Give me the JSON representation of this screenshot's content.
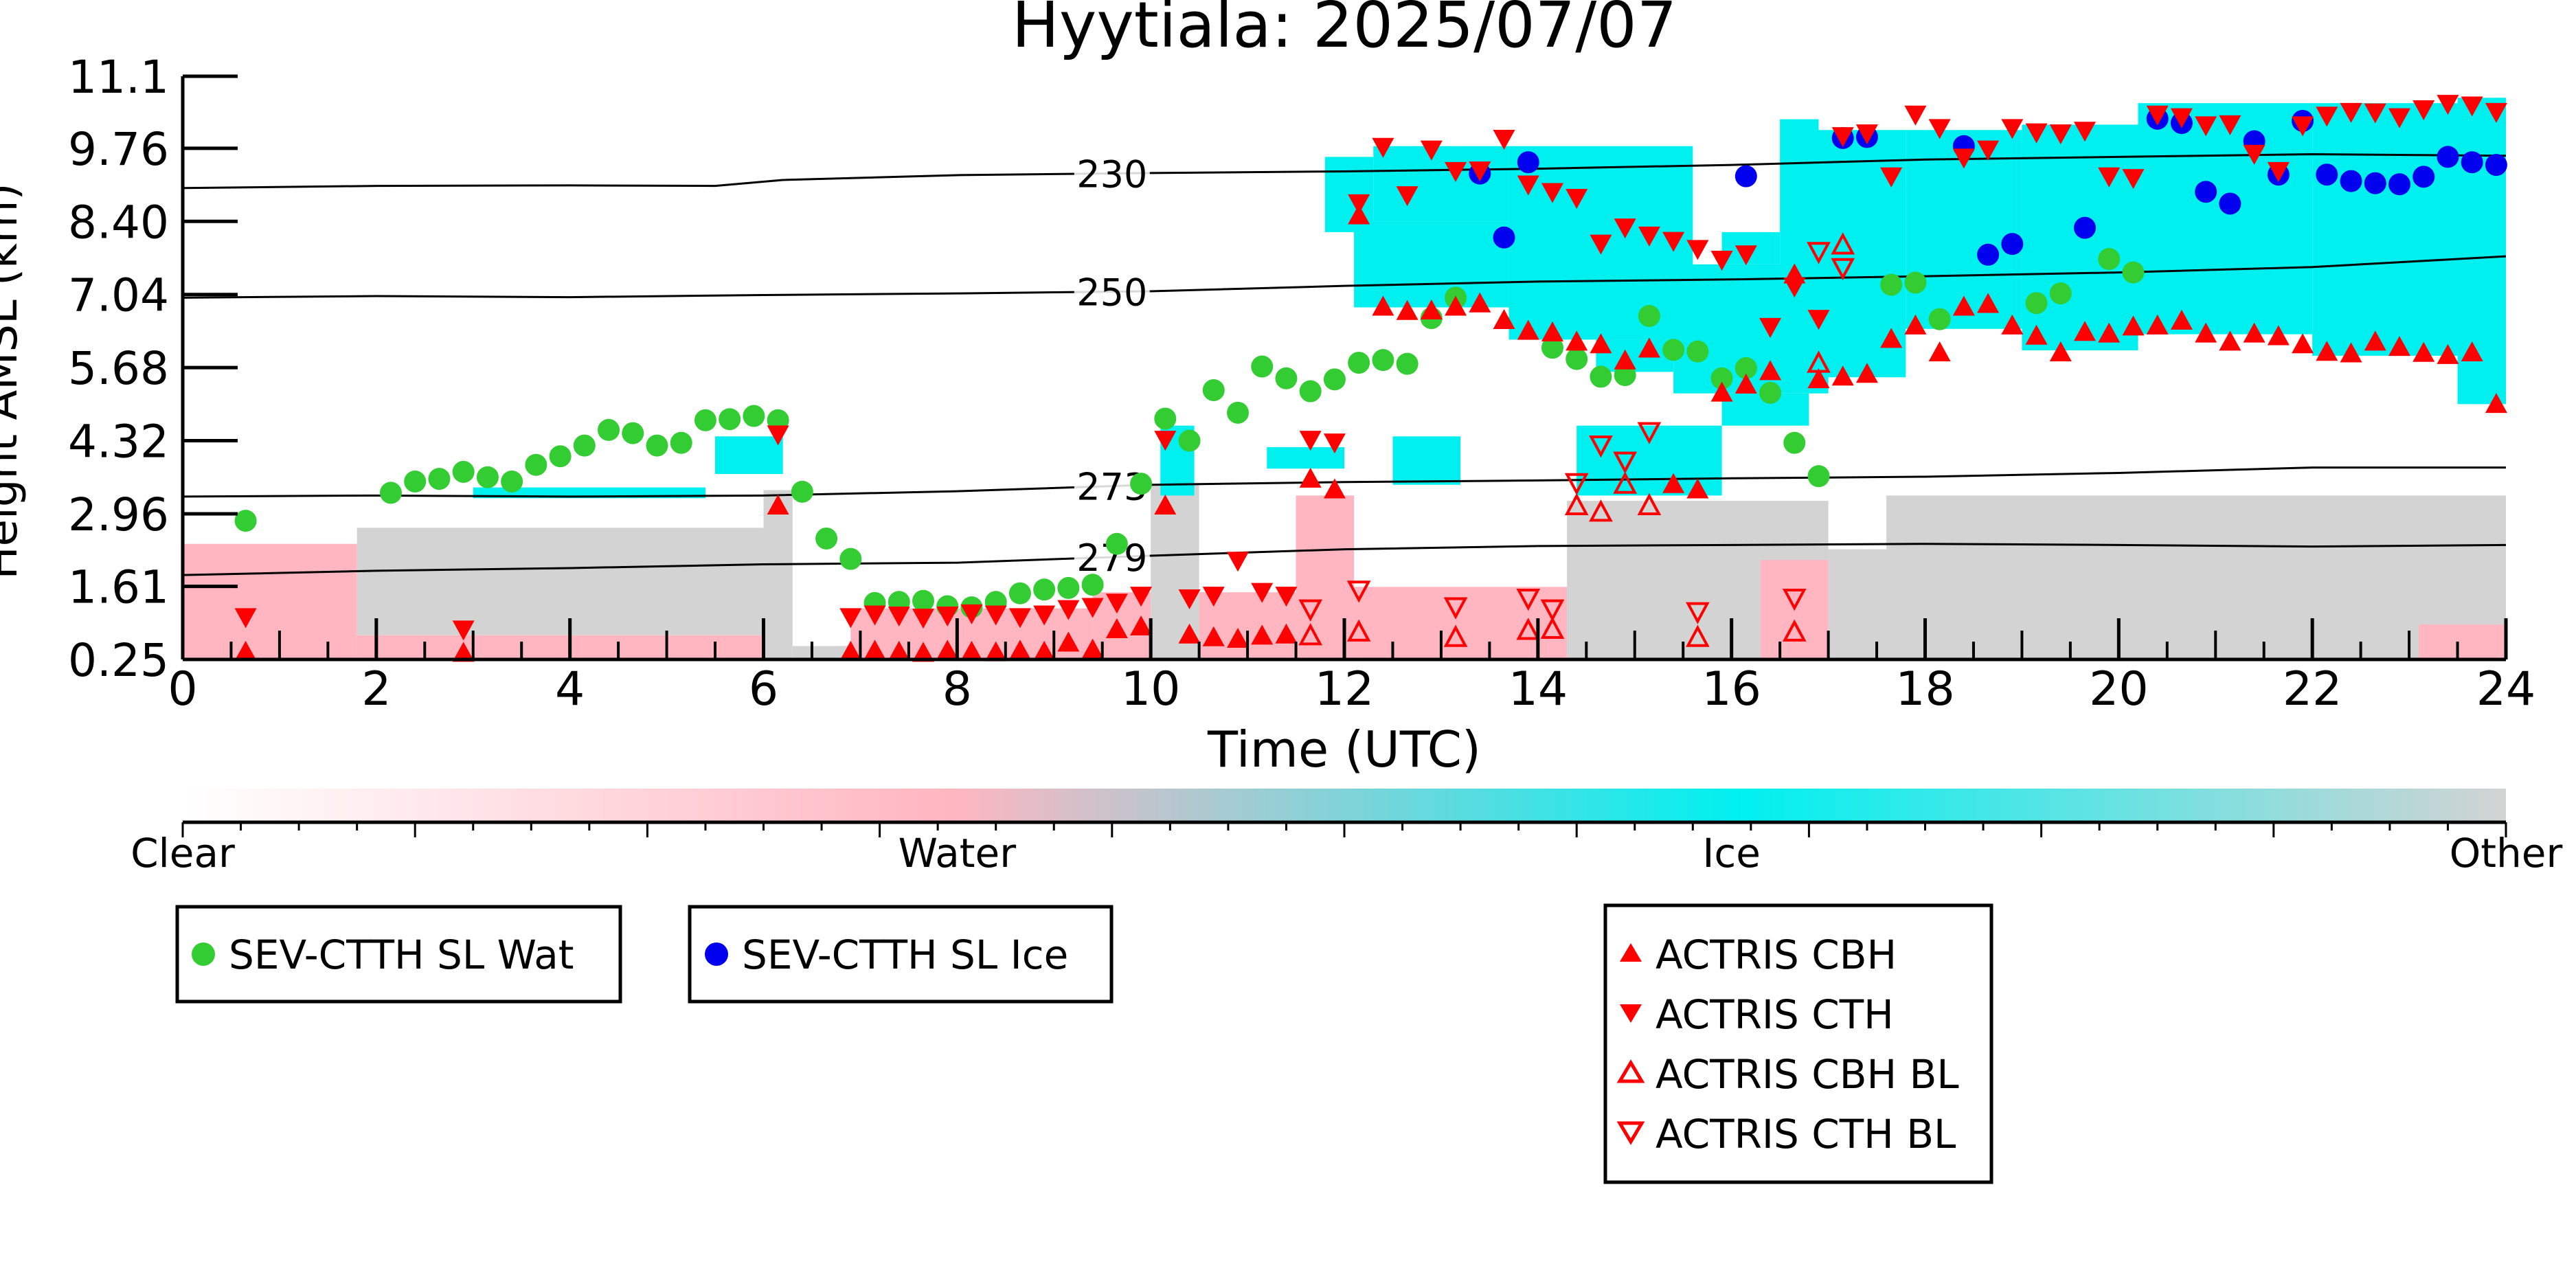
{
  "chart_data": {
    "type": "scatter",
    "title": "Hyytiala: 2025/07/07",
    "xlabel": "Time (UTC)",
    "ylabel": "Height AMSL (km)",
    "xlim": [
      0,
      24
    ],
    "ylim": [
      0.25,
      11.1
    ],
    "x_ticks": [
      "0",
      "2",
      "4",
      "6",
      "8",
      "10",
      "12",
      "14",
      "16",
      "18",
      "20",
      "22",
      "24"
    ],
    "y_ticks": [
      "0.25",
      "1.61",
      "2.96",
      "4.32",
      "5.68",
      "7.04",
      "8.40",
      "9.76",
      "11.1"
    ],
    "colorbar": {
      "labels": [
        "Clear",
        "Water",
        "Ice",
        "Other"
      ],
      "colors": [
        "#ffffff",
        "#ffb6c1",
        "#00f0f0",
        "#d3d3d3"
      ]
    },
    "isotherms": [
      {
        "label": "230",
        "x": [
          0,
          2,
          4,
          5.5,
          6.2,
          8,
          10,
          12,
          14,
          16,
          18,
          20,
          22,
          24
        ],
        "y": [
          9.02,
          9.06,
          9.07,
          9.06,
          9.17,
          9.26,
          9.3,
          9.33,
          9.38,
          9.45,
          9.55,
          9.6,
          9.65,
          9.62
        ]
      },
      {
        "label": "250",
        "x": [
          0,
          2,
          4,
          6,
          8,
          10,
          12,
          14,
          16,
          18,
          20,
          22,
          24
        ],
        "y": [
          6.98,
          7.01,
          6.99,
          7.03,
          7.06,
          7.1,
          7.2,
          7.28,
          7.32,
          7.38,
          7.45,
          7.55,
          7.75
        ]
      },
      {
        "label": "273",
        "x": [
          0,
          2,
          4,
          6,
          8,
          10,
          12,
          14,
          16,
          18,
          20,
          22,
          24
        ],
        "y": [
          3.28,
          3.3,
          3.28,
          3.3,
          3.38,
          3.5,
          3.55,
          3.58,
          3.62,
          3.65,
          3.72,
          3.82,
          3.82
        ]
      },
      {
        "label": "279",
        "x": [
          0,
          2,
          4,
          6,
          8,
          10,
          12,
          14,
          16,
          18,
          20,
          22,
          24
        ],
        "y": [
          1.82,
          1.9,
          1.95,
          2.02,
          2.05,
          2.18,
          2.3,
          2.36,
          2.38,
          2.4,
          2.38,
          2.35,
          2.38
        ]
      }
    ],
    "series": [
      {
        "name": "SEV-CTTH SL Wat",
        "color": "#33cc33",
        "marker": "circle",
        "x": [
          0.65,
          2.15,
          2.4,
          2.65,
          2.9,
          3.15,
          3.4,
          3.65,
          3.9,
          4.15,
          4.4,
          4.65,
          4.9,
          5.15,
          5.4,
          5.65,
          5.9,
          6.15,
          6.4,
          6.65,
          6.9,
          7.15,
          7.4,
          7.65,
          7.9,
          8.15,
          8.4,
          8.65,
          8.9,
          9.15,
          9.4,
          9.65,
          9.9,
          10.15,
          10.4,
          10.65,
          10.9,
          11.15,
          11.4,
          11.65,
          11.9,
          12.15,
          12.4,
          12.65,
          12.9,
          13.15,
          14.15,
          14.4,
          14.65,
          14.9,
          15.15,
          15.4,
          15.65,
          15.9,
          16.15,
          16.4,
          16.65,
          16.9,
          17.65,
          17.9,
          18.15,
          19.15,
          19.4,
          19.9,
          20.15
        ],
        "y": [
          2.83,
          3.35,
          3.56,
          3.61,
          3.74,
          3.64,
          3.56,
          3.87,
          4.03,
          4.23,
          4.52,
          4.46,
          4.23,
          4.28,
          4.7,
          4.72,
          4.78,
          4.7,
          3.37,
          2.5,
          2.12,
          1.3,
          1.32,
          1.34,
          1.24,
          1.22,
          1.32,
          1.48,
          1.55,
          1.58,
          1.64,
          2.4,
          3.52,
          4.73,
          4.32,
          5.26,
          4.84,
          5.7,
          5.48,
          5.24,
          5.46,
          5.77,
          5.82,
          5.75,
          6.6,
          6.98,
          6.05,
          5.84,
          5.51,
          5.54,
          6.64,
          6.01,
          5.98,
          5.48,
          5.67,
          5.21,
          4.28,
          3.66,
          7.22,
          7.26,
          6.58,
          6.88,
          7.06,
          7.7,
          7.45
        ]
      },
      {
        "name": "SEV-CTTH SL Ice",
        "color": "#0000ee",
        "marker": "circle",
        "x": [
          13.4,
          13.65,
          13.9,
          16.15,
          17.15,
          17.4,
          18.4,
          18.65,
          18.9,
          19.65,
          20.4,
          20.65,
          20.9,
          21.15,
          21.4,
          21.65,
          21.9,
          22.15,
          22.4,
          22.65,
          22.9,
          23.15,
          23.4,
          23.65,
          23.9
        ],
        "y": [
          9.29,
          8.1,
          9.5,
          9.24,
          9.95,
          9.97,
          9.8,
          7.78,
          7.98,
          8.28,
          10.31,
          10.23,
          8.95,
          8.73,
          9.89,
          9.27,
          10.27,
          9.27,
          9.15,
          9.11,
          9.09,
          9.23,
          9.6,
          9.5,
          9.45
        ]
      },
      {
        "name": "ACTRIS CBH",
        "color": "#ff0000",
        "marker": "triangle-up",
        "x": [
          0.65,
          2.9,
          6.15,
          6.9,
          7.15,
          7.4,
          7.65,
          7.9,
          8.15,
          8.4,
          8.65,
          8.9,
          9.15,
          9.4,
          9.65,
          9.9,
          10.15,
          10.4,
          10.65,
          10.9,
          11.15,
          11.4,
          11.65,
          11.9,
          12.15,
          12.4,
          12.65,
          12.9,
          13.15,
          13.4,
          13.65,
          13.9,
          14.15,
          14.4,
          14.65,
          14.9,
          15.15,
          15.4,
          15.65,
          15.9,
          16.15,
          16.4,
          16.65,
          16.9,
          17.15,
          17.4,
          17.65,
          17.9,
          18.15,
          18.4,
          18.65,
          18.9,
          19.15,
          19.4,
          19.65,
          19.9,
          20.15,
          20.4,
          20.65,
          20.9,
          21.15,
          21.4,
          21.65,
          21.9,
          22.15,
          22.4,
          22.65,
          22.9,
          23.15,
          23.4,
          23.65,
          23.9
        ],
        "y": [
          0.38,
          0.36,
          3.1,
          0.38,
          0.4,
          0.38,
          0.36,
          0.4,
          0.38,
          0.37,
          0.4,
          0.38,
          0.55,
          0.42,
          0.8,
          0.85,
          3.1,
          0.7,
          0.65,
          0.62,
          0.68,
          0.7,
          3.6,
          3.4,
          8.5,
          6.8,
          6.72,
          6.73,
          6.8,
          6.86,
          6.55,
          6.35,
          6.32,
          6.15,
          6.1,
          5.8,
          6.02,
          3.5,
          3.4,
          5.2,
          5.35,
          5.6,
          7.4,
          5.45,
          5.5,
          5.55,
          6.2,
          6.45,
          5.95,
          6.8,
          6.85,
          6.45,
          6.26,
          5.95,
          6.33,
          6.3,
          6.43,
          6.45,
          6.54,
          6.3,
          6.15,
          6.3,
          6.25,
          6.1,
          5.96,
          5.93,
          6.15,
          6.05,
          5.94,
          5.9,
          5.95,
          4.99
        ]
      },
      {
        "name": "ACTRIS CTH",
        "color": "#ff0000",
        "marker": "triangle-down",
        "x": [
          0.65,
          2.9,
          6.15,
          6.9,
          7.15,
          7.4,
          7.65,
          7.9,
          8.15,
          8.4,
          8.65,
          8.9,
          9.15,
          9.4,
          9.65,
          9.9,
          10.15,
          10.4,
          10.65,
          10.9,
          11.15,
          11.4,
          11.65,
          11.9,
          12.15,
          12.4,
          12.65,
          12.9,
          13.15,
          13.4,
          13.65,
          13.9,
          14.15,
          14.4,
          14.65,
          14.9,
          15.15,
          15.4,
          15.65,
          15.9,
          16.15,
          16.4,
          16.65,
          16.9,
          17.15,
          17.4,
          17.65,
          17.9,
          18.15,
          18.4,
          18.65,
          18.9,
          19.15,
          19.4,
          19.65,
          19.9,
          20.15,
          20.4,
          20.65,
          20.9,
          21.15,
          21.4,
          21.65,
          21.9,
          22.15,
          22.4,
          22.65,
          22.9,
          23.15,
          23.4,
          23.65,
          23.9
        ],
        "y": [
          1.05,
          0.82,
          4.45,
          1.05,
          1.1,
          1.08,
          1.04,
          1.08,
          1.12,
          1.1,
          1.05,
          1.1,
          1.2,
          1.24,
          1.32,
          1.45,
          4.35,
          1.4,
          1.45,
          2.1,
          1.52,
          1.45,
          4.35,
          4.3,
          8.75,
          9.8,
          8.9,
          9.75,
          9.35,
          9.36,
          9.95,
          9.1,
          8.96,
          8.85,
          8.0,
          8.3,
          8.15,
          8.05,
          7.9,
          7.7,
          7.8,
          6.45,
          7.2,
          6.6,
          10.0,
          10.05,
          9.25,
          10.4,
          10.15,
          9.6,
          9.75,
          10.15,
          10.07,
          10.05,
          10.1,
          9.25,
          9.22,
          10.4,
          10.35,
          10.2,
          10.22,
          9.67,
          9.35,
          10.2,
          10.38,
          10.45,
          10.44,
          10.35,
          10.5,
          10.6,
          10.57,
          10.45
        ]
      },
      {
        "name": "ACTRIS CBH BL",
        "color": "#ff0000",
        "marker": "triangle-up-open",
        "x": [
          11.65,
          12.15,
          13.15,
          13.9,
          14.15,
          14.4,
          14.65,
          14.9,
          15.15,
          15.65,
          16.65,
          16.9,
          17.15
        ],
        "y": [
          0.68,
          0.75,
          0.65,
          0.78,
          0.8,
          3.1,
          2.98,
          3.5,
          3.1,
          0.65,
          0.75,
          5.75,
          7.95
        ]
      },
      {
        "name": "ACTRIS CTH BL",
        "color": "#ff0000",
        "marker": "triangle-down-open",
        "x": [
          11.65,
          12.15,
          13.15,
          13.9,
          14.15,
          14.4,
          14.65,
          14.9,
          15.15,
          15.65,
          16.65,
          16.9,
          17.15
        ],
        "y": [
          1.2,
          1.55,
          1.24,
          1.4,
          1.2,
          3.55,
          4.25,
          3.95,
          4.5,
          1.15,
          1.4,
          7.85,
          7.55
        ]
      }
    ],
    "legend": [
      [
        "SEV-CTTH SL Wat",
        "SEV-CTTH SL Ice"
      ],
      [
        "ACTRIS CBH",
        "ACTRIS CTH",
        "ACTRIS CBH BL",
        "ACTRIS CTH BL"
      ]
    ],
    "grid": false
  }
}
